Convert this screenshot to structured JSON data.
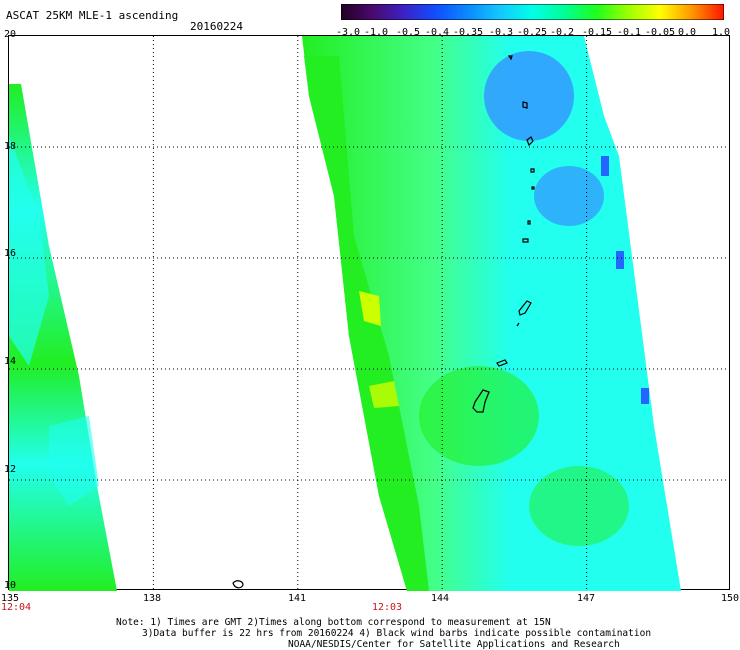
{
  "header": {
    "title": "ASCAT 25KM MLE-1 ascending",
    "date": "20160224"
  },
  "colorbar": {
    "labels": [
      "-3.0",
      "-1.0",
      "-0.5",
      "-0.4",
      "-0.35",
      "-0.3",
      "-0.25",
      "-0.2",
      "-0.15",
      "-0.1",
      "-0.05",
      "0.0",
      "1.0"
    ],
    "colors": [
      "#220022",
      "#4a0a6e",
      "#3a22c8",
      "#1050ff",
      "#0a8cff",
      "#14c8ff",
      "#00ffe6",
      "#00ff96",
      "#1eff1e",
      "#9cff00",
      "#ffff00",
      "#ff9600",
      "#ff1400"
    ]
  },
  "map": {
    "lat_labels": [
      "20",
      "18",
      "16",
      "14",
      "12",
      "10"
    ],
    "lon_labels": [
      "135",
      "138",
      "141",
      "144",
      "147",
      "150"
    ],
    "times": [
      "12:04",
      "12:03"
    ],
    "colors": {
      "green": "#22ee22",
      "cyan": "#22ffee",
      "blue": "#3399ff",
      "yellow": "#ccff00",
      "coast": "#000000",
      "grid": "#000000"
    }
  },
  "notes": {
    "line1": "Note: 1) Times are GMT 2)Times along bottom correspond to measurement at 15N",
    "line2": "3)Data buffer is 22 hrs from 20160224 4) Black wind barbs indicate possible contamination",
    "credit": "NOAA/NESDIS/Center for Satellite Applications and Research"
  }
}
